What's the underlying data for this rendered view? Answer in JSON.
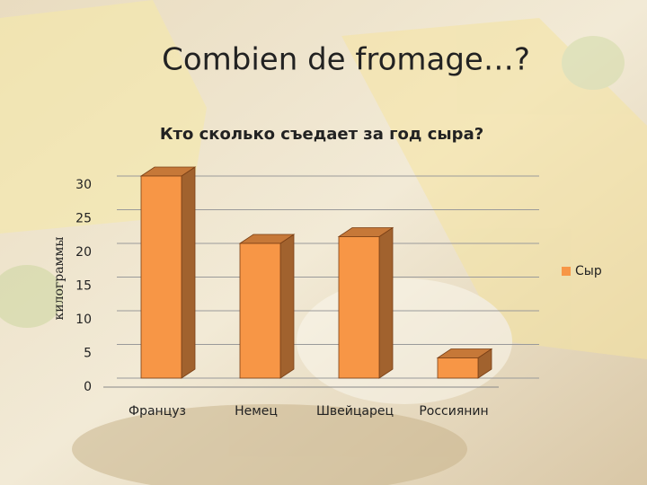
{
  "slide_title": "Combien de fromage…?",
  "chart_data": {
    "type": "bar3d",
    "title": "Кто сколько съедает за год сыра?",
    "y_label": "килограммы",
    "categories": [
      "Француз",
      "Немец",
      "Швейцарец",
      "Россиянин"
    ],
    "series": [
      {
        "name": "Сыр",
        "color": "#f79646",
        "values": [
          30,
          20,
          21,
          3
        ]
      }
    ],
    "ylim": [
      0,
      30
    ],
    "yticks": [
      0,
      5,
      10,
      15,
      20,
      25,
      30
    ],
    "grid": true,
    "legend": "right"
  }
}
